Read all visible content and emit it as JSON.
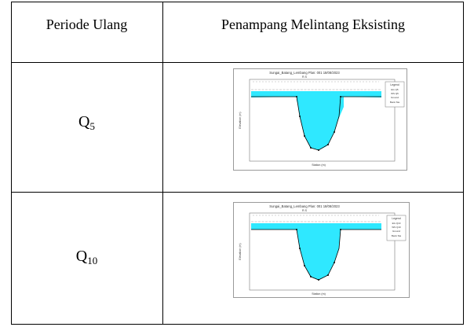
{
  "table": {
    "headers": [
      "Periode Ulang",
      "Penampang Melintang Eksisting"
    ],
    "rows": [
      {
        "period_main": "Q",
        "period_sub": "5",
        "figure": {
          "title": "Sungai_Batang_Lembang    Plan: 001   18/08/2023",
          "subtitle": "R.S",
          "xlabel": "Station (m)",
          "ylabel": "Elevation (m)",
          "legend_title": "Legend",
          "legend_items": [
            "EG Q5",
            "WS Q5",
            "Ground",
            "Bank Sta"
          ],
          "colors": {
            "water": "#2fe8ff",
            "ground": "#000000",
            "eg_line": "#a0a0a0"
          }
        }
      },
      {
        "period_main": "Q",
        "period_sub": "10",
        "figure": {
          "title": "Sungai_Batang_Lembang    Plan: 001   18/08/2023",
          "subtitle": "R.S",
          "xlabel": "Station (m)",
          "ylabel": "Elevation (m)",
          "legend_title": "Legend",
          "legend_items": [
            "EG Q10",
            "WS Q10",
            "Ground",
            "Bank Sta"
          ],
          "colors": {
            "water": "#2fe8ff",
            "ground": "#000000",
            "eg_line": "#a0a0a0"
          }
        }
      }
    ]
  }
}
